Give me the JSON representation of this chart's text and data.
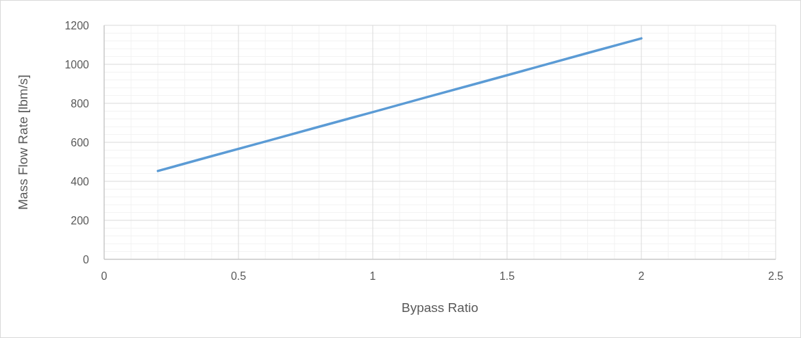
{
  "chart_data": {
    "type": "line",
    "xlabel": "Bypass Ratio",
    "ylabel": "Mass Flow Rate [lbm/s]",
    "x": [
      0.2,
      0.4,
      0.6,
      0.8,
      1.0,
      1.2,
      1.4,
      1.6,
      1.8,
      2.0
    ],
    "series": [
      {
        "color": "#5b9bd5",
        "values": [
          453,
          529,
          604,
          680,
          755,
          831,
          906,
          982,
          1058,
          1133
        ]
      }
    ],
    "xlim": [
      0,
      2.5
    ],
    "xticks": [
      0,
      0.5,
      1,
      1.5,
      2,
      2.5
    ],
    "ylim": [
      0,
      1200
    ],
    "yticks": [
      0,
      200,
      400,
      600,
      800,
      1000,
      1200
    ],
    "grid": true,
    "marker": "none",
    "line_style": "solid"
  }
}
